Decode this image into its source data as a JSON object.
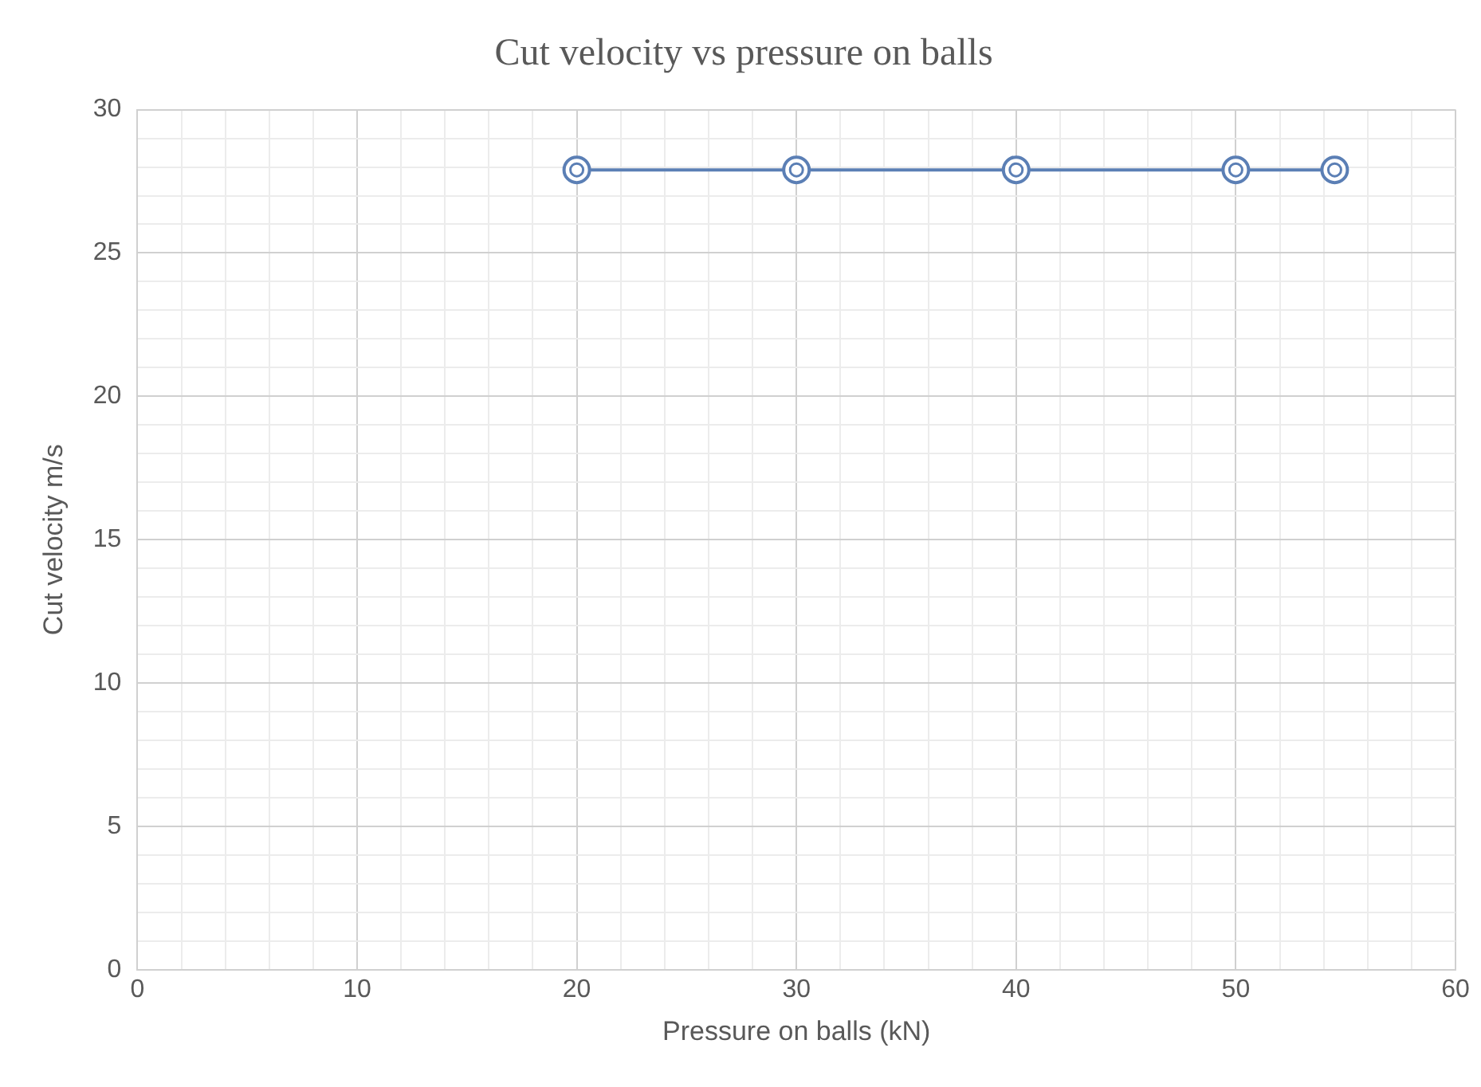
{
  "chart_data": {
    "type": "line",
    "title": "Cut velocity vs pressure on balls",
    "xlabel": "Pressure on balls (kN)",
    "ylabel": "Cut velocity m/s",
    "x": [
      20,
      30,
      40,
      50,
      54.5
    ],
    "series": [
      {
        "color": "#5b7fb5",
        "values": [
          27.9,
          27.9,
          27.9,
          27.9,
          27.9
        ]
      }
    ],
    "marker": "circle",
    "line_style": "solid",
    "grid": true,
    "legend": false,
    "xlim": [
      0,
      60
    ],
    "ylim": [
      0,
      30
    ],
    "xticks": [
      0,
      {
        "value": 2,
        "label": null
      },
      {
        "value": 4,
        "label": null
      },
      {
        "value": 6,
        "label": null
      },
      {
        "value": 8,
        "label": null
      },
      10,
      {
        "value": 12,
        "label": null
      },
      {
        "value": 14,
        "label": null
      },
      {
        "value": 16,
        "label": null
      },
      {
        "value": 18,
        "label": null
      },
      20,
      {
        "value": 22,
        "label": null
      },
      {
        "value": 24,
        "label": null
      },
      {
        "value": 26,
        "label": null
      },
      {
        "value": 28,
        "label": null
      },
      30,
      {
        "value": 32,
        "label": null
      },
      {
        "value": 34,
        "label": null
      },
      {
        "value": 36,
        "label": null
      },
      {
        "value": 38,
        "label": null
      },
      40,
      {
        "value": 42,
        "label": null
      },
      {
        "value": 44,
        "label": null
      },
      {
        "value": 46,
        "label": null
      },
      {
        "value": 48,
        "label": null
      },
      50,
      {
        "value": 52,
        "label": null
      },
      {
        "value": 54,
        "label": null
      },
      {
        "value": 56,
        "label": null
      },
      {
        "value": 58,
        "label": null
      },
      60
    ],
    "yticks": [
      0,
      {
        "value": 1,
        "label": null
      },
      {
        "value": 2,
        "label": null
      },
      {
        "value": 3,
        "label": null
      },
      {
        "value": 4,
        "label": null
      },
      5,
      {
        "value": 6,
        "label": null
      },
      {
        "value": 7,
        "label": null
      },
      {
        "value": 8,
        "label": null
      },
      {
        "value": 9,
        "label": null
      },
      10,
      {
        "value": 11,
        "label": null
      },
      {
        "value": 12,
        "label": null
      },
      {
        "value": 13,
        "label": null
      },
      {
        "value": 14,
        "label": null
      },
      15,
      {
        "value": 16,
        "label": null
      },
      {
        "value": 17,
        "label": null
      },
      {
        "value": 18,
        "label": null
      },
      {
        "value": 19,
        "label": null
      },
      20,
      {
        "value": 21,
        "label": null
      },
      {
        "value": 22,
        "label": null
      },
      {
        "value": 23,
        "label": null
      },
      {
        "value": 24,
        "label": null
      },
      25,
      {
        "value": 26,
        "label": null
      },
      {
        "value": 27,
        "label": null
      },
      {
        "value": 28,
        "label": null
      },
      {
        "value": 29,
        "label": null
      },
      30
    ]
  }
}
